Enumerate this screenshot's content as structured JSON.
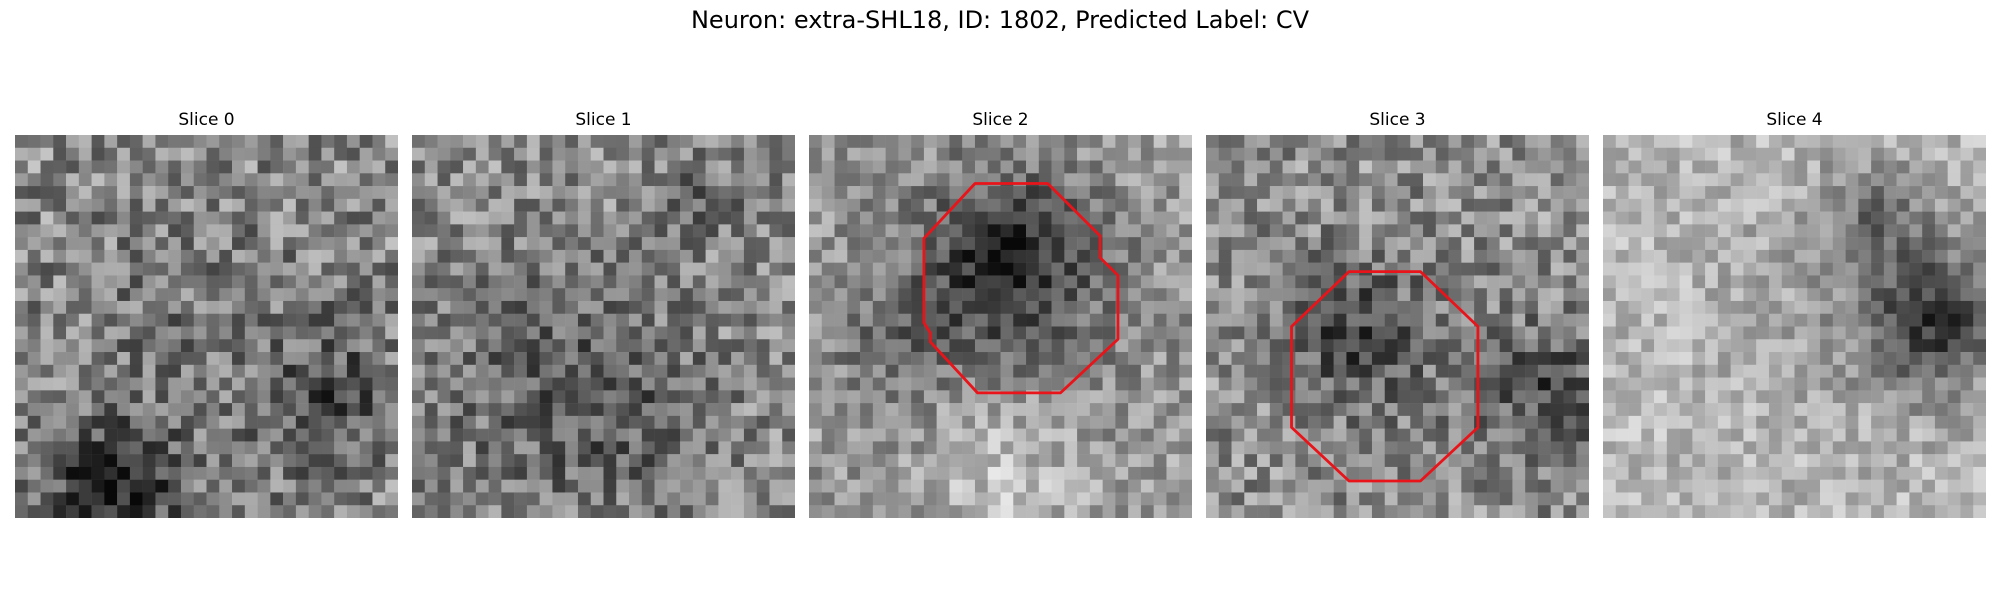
{
  "figure": {
    "title": "Neuron: extra-SHL18, ID: 1802, Predicted Label: CV"
  },
  "grid_size": 30,
  "contour_color": "#e8141a",
  "panels": [
    {
      "title": "Slice 0",
      "seed": 11,
      "base": 0.56,
      "noise": 0.24,
      "features": [
        {
          "cx": 7.5,
          "cy": 27.5,
          "r": 3.2,
          "amp": -0.45
        },
        {
          "cx": 15,
          "cy": 18,
          "r": 11,
          "amp": -0.1
        },
        {
          "cx": 25,
          "cy": 20.5,
          "r": 3.5,
          "amp": -0.2
        }
      ],
      "contour": null
    },
    {
      "title": "Slice 1",
      "seed": 23,
      "base": 0.55,
      "noise": 0.22,
      "features": [
        {
          "cx": 10,
          "cy": 19,
          "r": 7,
          "amp": -0.14
        },
        {
          "cx": 17,
          "cy": 22,
          "r": 5,
          "amp": -0.12
        },
        {
          "cx": 22.5,
          "cy": 5,
          "r": 2.5,
          "amp": -0.14
        }
      ],
      "contour": null
    },
    {
      "title": "Slice 2",
      "seed": 37,
      "base": 0.62,
      "noise": 0.18,
      "features": [
        {
          "cx": 15.5,
          "cy": 10,
          "r": 4.5,
          "amp": -0.38
        },
        {
          "cx": 15,
          "cy": 13,
          "r": 9.5,
          "amp": -0.12
        },
        {
          "cx": 6,
          "cy": 16,
          "r": 3,
          "amp": -0.14
        },
        {
          "cx": 15,
          "cy": 26,
          "r": 4,
          "amp": 0.18
        }
      ],
      "contour": [
        [
          13,
          3.8
        ],
        [
          18.7,
          3.8
        ],
        [
          22.8,
          7.9
        ],
        [
          22.8,
          9.6
        ],
        [
          24.2,
          11
        ],
        [
          24.2,
          16
        ],
        [
          19.7,
          20.2
        ],
        [
          13.2,
          20.2
        ],
        [
          9.5,
          16.2
        ],
        [
          9.5,
          15.5
        ],
        [
          9,
          14.7
        ],
        [
          9,
          8.1
        ]
      ]
    },
    {
      "title": "Slice 3",
      "seed": 53,
      "base": 0.57,
      "noise": 0.22,
      "features": [
        {
          "cx": 11.5,
          "cy": 15.5,
          "r": 3.5,
          "amp": -0.22
        },
        {
          "cx": 27,
          "cy": 20,
          "r": 3.5,
          "amp": -0.26
        },
        {
          "cx": 14.5,
          "cy": 17,
          "r": 8,
          "amp": -0.08
        }
      ],
      "contour": [
        [
          11.2,
          10.7
        ],
        [
          16.8,
          10.7
        ],
        [
          21.3,
          15
        ],
        [
          21.3,
          22.9
        ],
        [
          16.8,
          27.1
        ],
        [
          11.2,
          27.1
        ],
        [
          6.7,
          22.9
        ],
        [
          6.7,
          15
        ]
      ]
    },
    {
      "title": "Slice 4",
      "seed": 71,
      "base": 0.72,
      "noise": 0.15,
      "features": [
        {
          "cx": 26,
          "cy": 14.5,
          "r": 3.8,
          "amp": -0.45
        },
        {
          "cx": 21.5,
          "cy": 6,
          "r": 3,
          "amp": -0.22
        },
        {
          "cx": 20,
          "cy": 13,
          "r": 7,
          "amp": -0.1
        }
      ],
      "contour": null
    }
  ]
}
